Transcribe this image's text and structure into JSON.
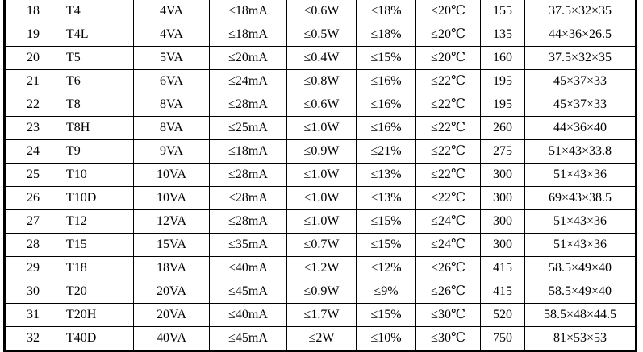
{
  "table": {
    "rows": [
      {
        "no": "18",
        "model": "T4",
        "power": "4VA",
        "current": "≤18mA",
        "loss": "≤0.6W",
        "regulation": "≤18%",
        "temp": "≤20℃",
        "weight": "155",
        "dims": "37.5×32×35"
      },
      {
        "no": "19",
        "model": "T4L",
        "power": "4VA",
        "current": "≤18mA",
        "loss": "≤0.5W",
        "regulation": "≤18%",
        "temp": "≤20℃",
        "weight": "135",
        "dims": "44×36×26.5"
      },
      {
        "no": "20",
        "model": "T5",
        "power": "5VA",
        "current": "≤20mA",
        "loss": "≤0.4W",
        "regulation": "≤15%",
        "temp": "≤20℃",
        "weight": "160",
        "dims": "37.5×32×35"
      },
      {
        "no": "21",
        "model": "T6",
        "power": "6VA",
        "current": "≤24mA",
        "loss": "≤0.8W",
        "regulation": "≤16%",
        "temp": "≤22℃",
        "weight": "195",
        "dims": "45×37×33"
      },
      {
        "no": "22",
        "model": "T8",
        "power": "8VA",
        "current": "≤28mA",
        "loss": "≤0.6W",
        "regulation": "≤16%",
        "temp": "≤22℃",
        "weight": "195",
        "dims": "45×37×33"
      },
      {
        "no": "23",
        "model": "T8H",
        "power": "8VA",
        "current": "≤25mA",
        "loss": "≤1.0W",
        "regulation": "≤16%",
        "temp": "≤22℃",
        "weight": "260",
        "dims": "44×36×40"
      },
      {
        "no": "24",
        "model": "T9",
        "power": "9VA",
        "current": "≤18mA",
        "loss": "≤0.9W",
        "regulation": "≤21%",
        "temp": "≤22℃",
        "weight": "275",
        "dims": "51×43×33.8"
      },
      {
        "no": "25",
        "model": "T10",
        "power": "10VA",
        "current": "≤28mA",
        "loss": "≤1.0W",
        "regulation": "≤13%",
        "temp": "≤22℃",
        "weight": "300",
        "dims": "51×43×36"
      },
      {
        "no": "26",
        "model": "T10D",
        "power": "10VA",
        "current": "≤28mA",
        "loss": "≤1.0W",
        "regulation": "≤13%",
        "temp": "≤22℃",
        "weight": "300",
        "dims": "69×43×38.5"
      },
      {
        "no": "27",
        "model": "T12",
        "power": "12VA",
        "current": "≤28mA",
        "loss": "≤1.0W",
        "regulation": "≤15%",
        "temp": "≤24℃",
        "weight": "300",
        "dims": "51×43×36"
      },
      {
        "no": "28",
        "model": "T15",
        "power": "15VA",
        "current": "≤35mA",
        "loss": "≤0.7W",
        "regulation": "≤15%",
        "temp": "≤24℃",
        "weight": "300",
        "dims": "51×43×36"
      },
      {
        "no": "29",
        "model": "T18",
        "power": "18VA",
        "current": "≤40mA",
        "loss": "≤1.2W",
        "regulation": "≤12%",
        "temp": "≤26℃",
        "weight": "415",
        "dims": "58.5×49×40"
      },
      {
        "no": "30",
        "model": "T20",
        "power": "20VA",
        "current": "≤45mA",
        "loss": "≤0.9W",
        "regulation": "≤9%",
        "temp": "≤26℃",
        "weight": "415",
        "dims": "58.5×49×40"
      },
      {
        "no": "31",
        "model": "T20H",
        "power": "20VA",
        "current": "≤40mA",
        "loss": "≤1.7W",
        "regulation": "≤15%",
        "temp": "≤30℃",
        "weight": "520",
        "dims": "58.5×48×44.5"
      },
      {
        "no": "32",
        "model": "T40D",
        "power": "40VA",
        "current": "≤45mA",
        "loss": "≤2W",
        "regulation": "≤10%",
        "temp": "≤30℃",
        "weight": "750",
        "dims": "81×53×53"
      }
    ]
  }
}
